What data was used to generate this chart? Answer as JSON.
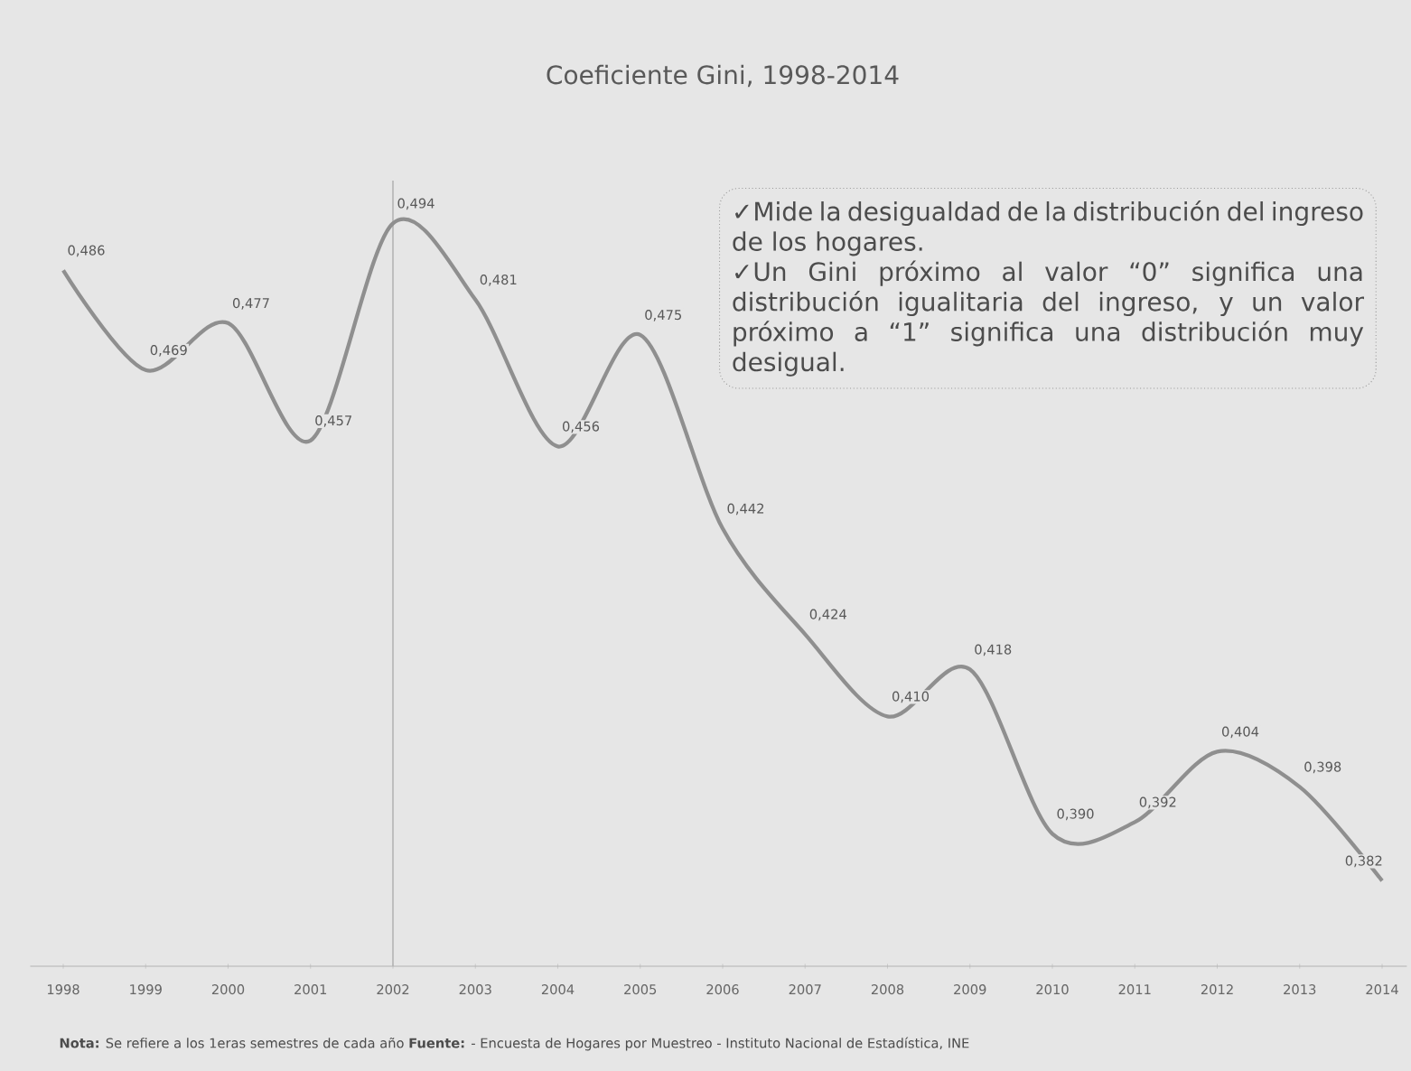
{
  "chart_data": {
    "type": "line",
    "title": "Coeficiente Gini, 1998-2014",
    "categories": [
      "1998",
      "1999",
      "2000",
      "2001",
      "2002",
      "2003",
      "2004",
      "2005",
      "2006",
      "2007",
      "2008",
      "2009",
      "2010",
      "2011",
      "2012",
      "2013",
      "2014"
    ],
    "values": [
      0.486,
      0.469,
      0.477,
      0.457,
      0.494,
      0.481,
      0.456,
      0.475,
      0.442,
      0.424,
      0.41,
      0.418,
      0.39,
      0.392,
      0.404,
      0.398,
      0.382
    ],
    "value_labels": [
      "0,486",
      "0,469",
      "0,477",
      "0,457",
      "0,494",
      "0,481",
      "0,456",
      "0,475",
      "0,442",
      "0,424",
      "0,410",
      "0,418",
      "0,390",
      "0,392",
      "0,404",
      "0,398",
      "0,382"
    ],
    "color": "#8f8f8f",
    "ref_lines": [
      {
        "axis": "x",
        "value": "2002",
        "color": "#b4b4b4"
      }
    ],
    "annotations": [
      "✓Mide la desigualdad de la distribución del ingreso de los hogares.",
      "✓Un Gini próximo al valor “0” significa una distribución igualitaria del ingreso, y un valor próximo a “1” significa una distribución muy desigual.",
      "**Nota:** Se refiere a los 1eras semestres de cada año   **Fuente:** - Encuesta de Hogares por Muestreo   - Instituto Nacional de Estadística, INE"
    ]
  }
}
